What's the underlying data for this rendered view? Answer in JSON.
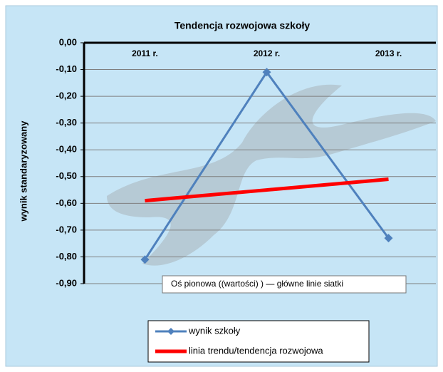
{
  "chart_data": {
    "type": "line",
    "title": "Tendencja rozwojowa szkoły",
    "y_label": "wynik standaryzowany",
    "categories": [
      "2011 r.",
      "2012 r.",
      "2013 r."
    ],
    "series": [
      {
        "name": "wynik szkoły",
        "color": "#4f81bd",
        "marker": "diamond",
        "values": [
          -0.81,
          -0.11,
          -0.73
        ]
      },
      {
        "name": "linia trendu/tendencja rozwojowa",
        "color": "#ff0000",
        "marker": "none",
        "values": [
          -0.59,
          -0.55,
          -0.51
        ]
      }
    ],
    "ylim": [
      -0.9,
      0
    ],
    "yticks": [
      {
        "value": 0,
        "label": "0,00"
      },
      {
        "value": -0.1,
        "label": "-0,10"
      },
      {
        "value": -0.2,
        "label": "-0,20"
      },
      {
        "value": -0.3,
        "label": "-0,30"
      },
      {
        "value": -0.4,
        "label": "-0,40"
      },
      {
        "value": -0.5,
        "label": "-0,50"
      },
      {
        "value": -0.6,
        "label": "-0,60"
      },
      {
        "value": -0.7,
        "label": "-0,70"
      },
      {
        "value": -0.8,
        "label": "-0,80"
      },
      {
        "value": -0.9,
        "label": "-0,90"
      }
    ],
    "grid": true,
    "tooltip": "Oś  pionowa  ((wartości) )  — główne linie siatki"
  }
}
